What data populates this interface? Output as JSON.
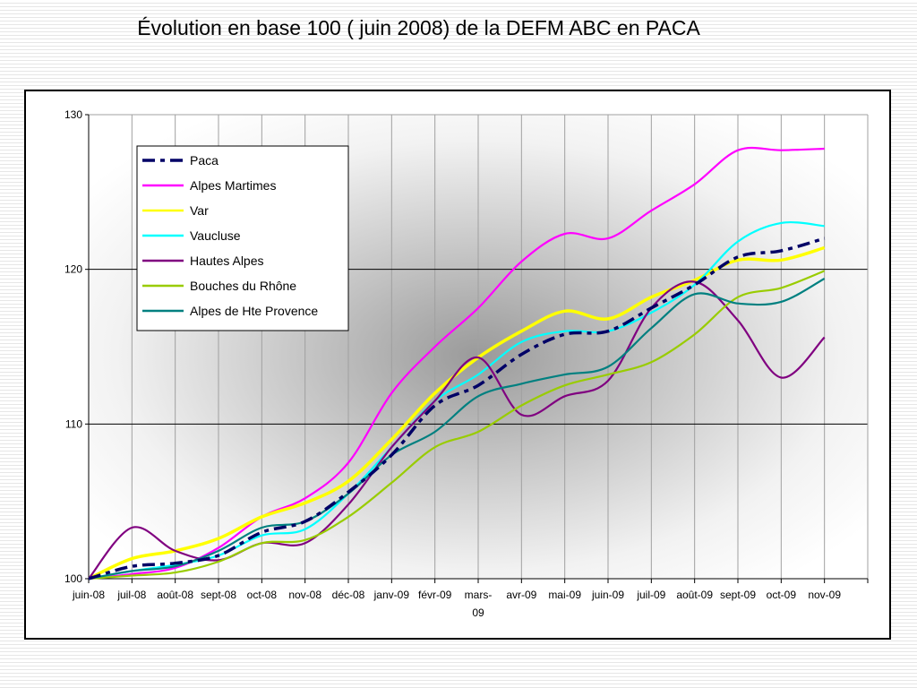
{
  "slide": {
    "title": "Évolution en base 100 ( juin 2008) de la DEFM ABC en PACA"
  },
  "chart_data": {
    "type": "line",
    "title": "Évolution en base 100 ( juin 2008) de la DEFM ABC en PACA",
    "xlabel": "",
    "ylabel": "",
    "ylim": [
      100,
      130
    ],
    "yticks": [
      100,
      110,
      120,
      130
    ],
    "grid": true,
    "legend_position": "top-left",
    "categories": [
      "juin-08",
      "juil-08",
      "août-08",
      "sept-08",
      "oct-08",
      "nov-08",
      "déc-08",
      "janv-09",
      "févr-09",
      "mars-09",
      "avr-09",
      "mai-09",
      "juin-09",
      "juil-09",
      "août-09",
      "sept-09",
      "oct-09",
      "nov-09"
    ],
    "tick_labels": [
      [
        "juin-08"
      ],
      [
        "juil-08"
      ],
      [
        "août-08"
      ],
      [
        "sept-08"
      ],
      [
        "oct-08"
      ],
      [
        "nov-08"
      ],
      [
        "déc-08"
      ],
      [
        "janv-09"
      ],
      [
        "févr-09"
      ],
      [
        "mars-",
        "09"
      ],
      [
        "avr-09"
      ],
      [
        "mai-09"
      ],
      [
        "juin-09"
      ],
      [
        "juil-09"
      ],
      [
        "août-09"
      ],
      [
        "sept-09"
      ],
      [
        "oct-09"
      ],
      [
        "nov-09"
      ]
    ],
    "series": [
      {
        "name": "Paca",
        "color": "#000066",
        "dash": true,
        "values": [
          100.0,
          100.8,
          101.0,
          101.5,
          103.0,
          103.7,
          105.6,
          108.0,
          111.2,
          112.5,
          114.5,
          115.8,
          116.0,
          117.5,
          119.0,
          120.8,
          121.2,
          122.0
        ]
      },
      {
        "name": "Alpes Martimes",
        "color": "#ff00ff",
        "dash": false,
        "values": [
          100.0,
          100.3,
          100.7,
          102.0,
          104.0,
          105.2,
          107.5,
          112.0,
          115.0,
          117.5,
          120.5,
          122.3,
          122.0,
          123.8,
          125.5,
          127.7,
          127.7,
          127.8
        ]
      },
      {
        "name": "Var",
        "color": "#ffff00",
        "dash": false,
        "values": [
          100.0,
          101.3,
          101.8,
          102.6,
          104.0,
          104.9,
          106.3,
          109.0,
          112.0,
          114.3,
          116.0,
          117.3,
          116.8,
          118.2,
          119.3,
          120.6,
          120.6,
          121.4
        ]
      },
      {
        "name": "Vaucluse",
        "color": "#00ffff",
        "dash": false,
        "values": [
          100.0,
          100.5,
          100.9,
          101.5,
          102.8,
          103.2,
          105.5,
          108.5,
          111.5,
          113.2,
          115.3,
          116.0,
          116.0,
          117.2,
          119.0,
          121.8,
          123.0,
          122.8
        ]
      },
      {
        "name": "Hautes Alpes",
        "color": "#800080",
        "dash": false,
        "values": [
          100.0,
          103.3,
          101.8,
          101.2,
          102.3,
          102.3,
          104.8,
          108.5,
          111.5,
          114.3,
          110.6,
          111.8,
          112.8,
          117.5,
          119.2,
          116.7,
          113.0,
          115.6
        ]
      },
      {
        "name": "Bouches du Rhône",
        "color": "#99cc00",
        "dash": false,
        "values": [
          100.0,
          100.2,
          100.4,
          101.1,
          102.3,
          102.5,
          104.0,
          106.2,
          108.5,
          109.5,
          111.2,
          112.5,
          113.2,
          114.0,
          115.8,
          118.2,
          118.8,
          119.9
        ]
      },
      {
        "name": "Alpes de Hte Provence",
        "color": "#008080",
        "dash": false,
        "values": [
          100.0,
          100.5,
          100.8,
          101.8,
          103.3,
          103.7,
          105.5,
          108.0,
          109.5,
          111.8,
          112.6,
          113.2,
          113.7,
          116.2,
          118.4,
          117.8,
          117.9,
          119.4
        ]
      }
    ]
  }
}
